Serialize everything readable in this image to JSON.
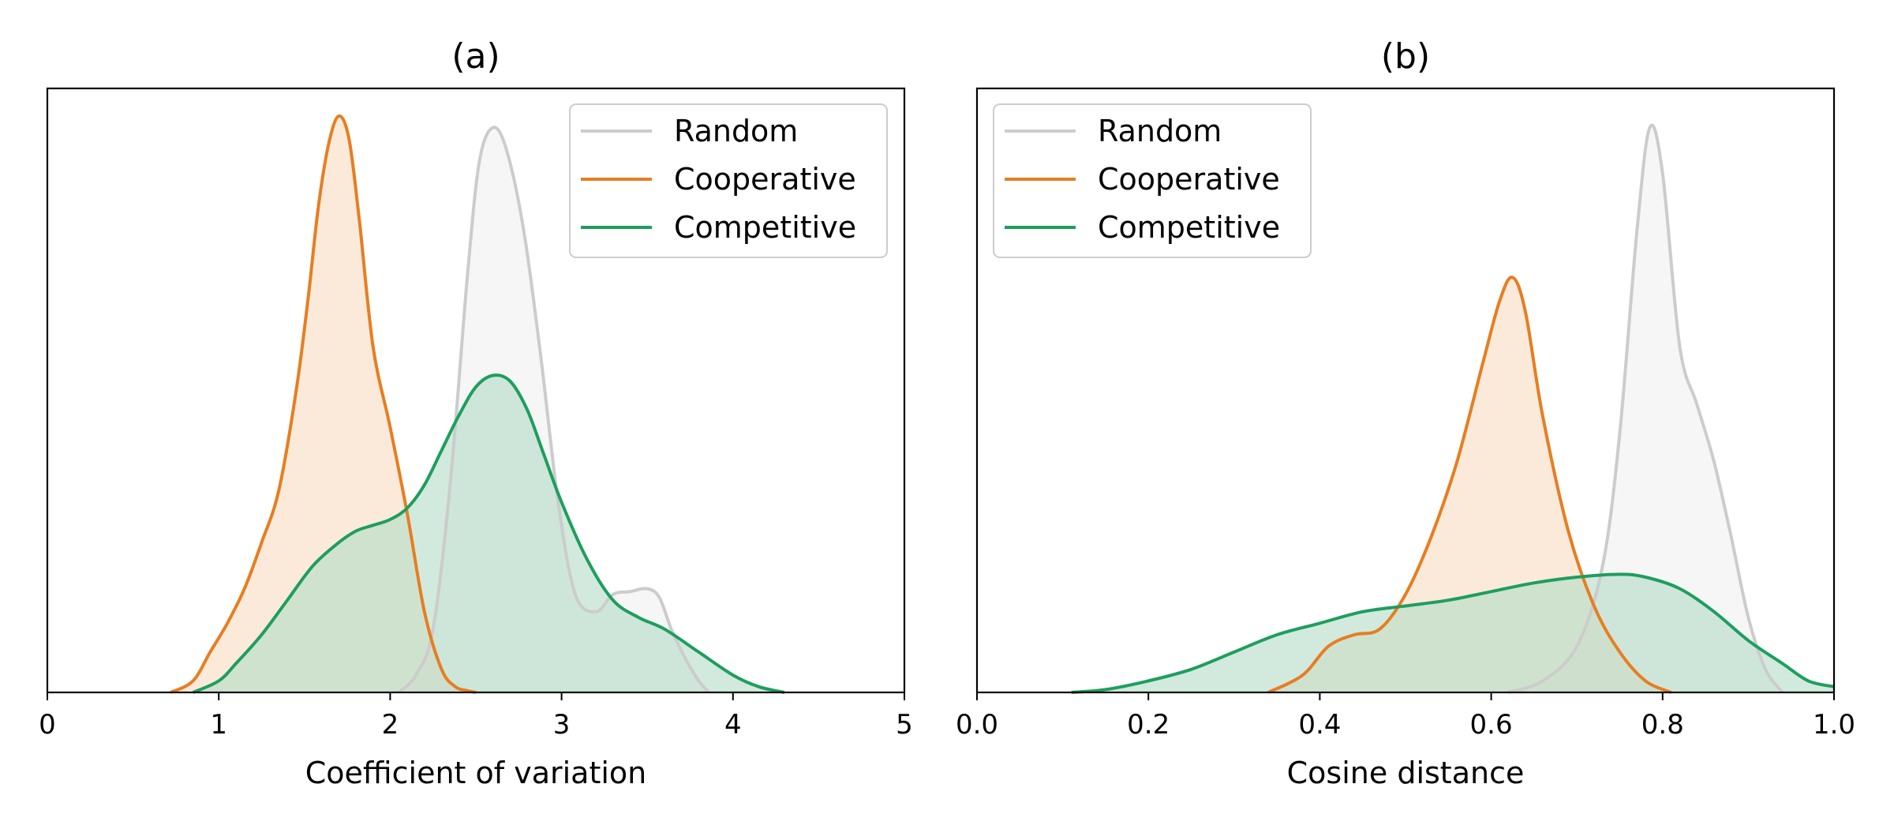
{
  "chart_data": [
    {
      "type": "area",
      "title": "(a)",
      "xlabel": "Coefficient of variation",
      "ylabel": "",
      "xlim": [
        0,
        5
      ],
      "xticks": [
        "0",
        "1",
        "2",
        "3",
        "4",
        "5"
      ],
      "yticks_shown": false,
      "ylim_relative": [
        0,
        1.0
      ],
      "legend": {
        "placement": "top-right",
        "entries": [
          "Random",
          "Cooperative",
          "Competitive"
        ]
      },
      "series": [
        {
          "name": "Random",
          "color": "#cccccc",
          "fill": "#f0f0f0",
          "x": [
            2.05,
            2.15,
            2.25,
            2.35,
            2.45,
            2.52,
            2.6,
            2.68,
            2.78,
            2.88,
            2.98,
            3.08,
            3.2,
            3.3,
            3.4,
            3.5,
            3.57,
            3.64,
            3.72,
            3.8,
            3.86
          ],
          "density": [
            0.0,
            0.03,
            0.11,
            0.36,
            0.72,
            0.92,
            0.98,
            0.94,
            0.8,
            0.58,
            0.33,
            0.17,
            0.14,
            0.17,
            0.175,
            0.18,
            0.165,
            0.11,
            0.06,
            0.02,
            0.0
          ]
        },
        {
          "name": "Cooperative",
          "color": "#e67e22",
          "fill": "#f8dcc2",
          "x": [
            0.72,
            0.85,
            0.95,
            1.05,
            1.15,
            1.25,
            1.35,
            1.45,
            1.52,
            1.58,
            1.64,
            1.7,
            1.76,
            1.82,
            1.9,
            2.0,
            2.1,
            2.2,
            2.3,
            2.38,
            2.45,
            2.5
          ],
          "density": [
            0.0,
            0.02,
            0.07,
            0.12,
            0.18,
            0.26,
            0.35,
            0.52,
            0.68,
            0.84,
            0.95,
            1.0,
            0.96,
            0.82,
            0.6,
            0.46,
            0.31,
            0.14,
            0.04,
            0.01,
            0.003,
            0.0
          ]
        },
        {
          "name": "Competitive",
          "color": "#1e9e5e",
          "fill": "#b3dcc6",
          "x": [
            0.85,
            1.0,
            1.1,
            1.25,
            1.4,
            1.55,
            1.7,
            1.8,
            1.9,
            2.0,
            2.1,
            2.2,
            2.3,
            2.4,
            2.5,
            2.6,
            2.7,
            2.8,
            2.9,
            3.0,
            3.15,
            3.3,
            3.45,
            3.6,
            3.8,
            4.0,
            4.15,
            4.3
          ],
          "density": [
            0.0,
            0.02,
            0.05,
            0.1,
            0.16,
            0.22,
            0.26,
            0.28,
            0.29,
            0.3,
            0.32,
            0.36,
            0.42,
            0.48,
            0.53,
            0.55,
            0.54,
            0.49,
            0.41,
            0.33,
            0.23,
            0.16,
            0.13,
            0.11,
            0.07,
            0.03,
            0.01,
            0.0
          ]
        }
      ]
    },
    {
      "type": "area",
      "title": "(b)",
      "xlabel": "Cosine distance",
      "ylabel": "",
      "xlim": [
        0.0,
        1.0
      ],
      "xticks": [
        "0.0",
        "0.2",
        "0.4",
        "0.6",
        "0.8",
        "1.0"
      ],
      "yticks_shown": false,
      "ylim_relative": [
        0,
        1.0
      ],
      "legend": {
        "placement": "top-left",
        "entries": [
          "Random",
          "Cooperative",
          "Competitive"
        ]
      },
      "series": [
        {
          "name": "Random",
          "color": "#cccccc",
          "fill": "#f0f0f0",
          "x": [
            0.62,
            0.66,
            0.7,
            0.73,
            0.75,
            0.77,
            0.785,
            0.8,
            0.82,
            0.84,
            0.86,
            0.88,
            0.9,
            0.92,
            0.94
          ],
          "density": [
            0.0,
            0.02,
            0.08,
            0.22,
            0.45,
            0.8,
            0.98,
            0.9,
            0.6,
            0.5,
            0.4,
            0.27,
            0.13,
            0.04,
            0.0
          ]
        },
        {
          "name": "Cooperative",
          "color": "#e67e22",
          "fill": "#f8dcc2",
          "x": [
            0.34,
            0.38,
            0.41,
            0.44,
            0.47,
            0.5,
            0.53,
            0.56,
            0.59,
            0.61,
            0.625,
            0.64,
            0.66,
            0.69,
            0.72,
            0.75,
            0.78,
            0.81
          ],
          "density": [
            0.0,
            0.03,
            0.08,
            0.1,
            0.11,
            0.17,
            0.27,
            0.4,
            0.57,
            0.68,
            0.72,
            0.66,
            0.48,
            0.28,
            0.15,
            0.07,
            0.02,
            0.0
          ]
        },
        {
          "name": "Competitive",
          "color": "#1e9e5e",
          "fill": "#b3dcc6",
          "x": [
            0.11,
            0.15,
            0.2,
            0.25,
            0.3,
            0.35,
            0.4,
            0.45,
            0.5,
            0.55,
            0.6,
            0.65,
            0.7,
            0.75,
            0.78,
            0.82,
            0.86,
            0.9,
            0.94,
            0.97,
            1.0
          ],
          "density": [
            0.0,
            0.005,
            0.02,
            0.04,
            0.07,
            0.1,
            0.12,
            0.14,
            0.15,
            0.16,
            0.175,
            0.19,
            0.2,
            0.205,
            0.2,
            0.18,
            0.14,
            0.09,
            0.05,
            0.02,
            0.01
          ]
        }
      ]
    }
  ]
}
